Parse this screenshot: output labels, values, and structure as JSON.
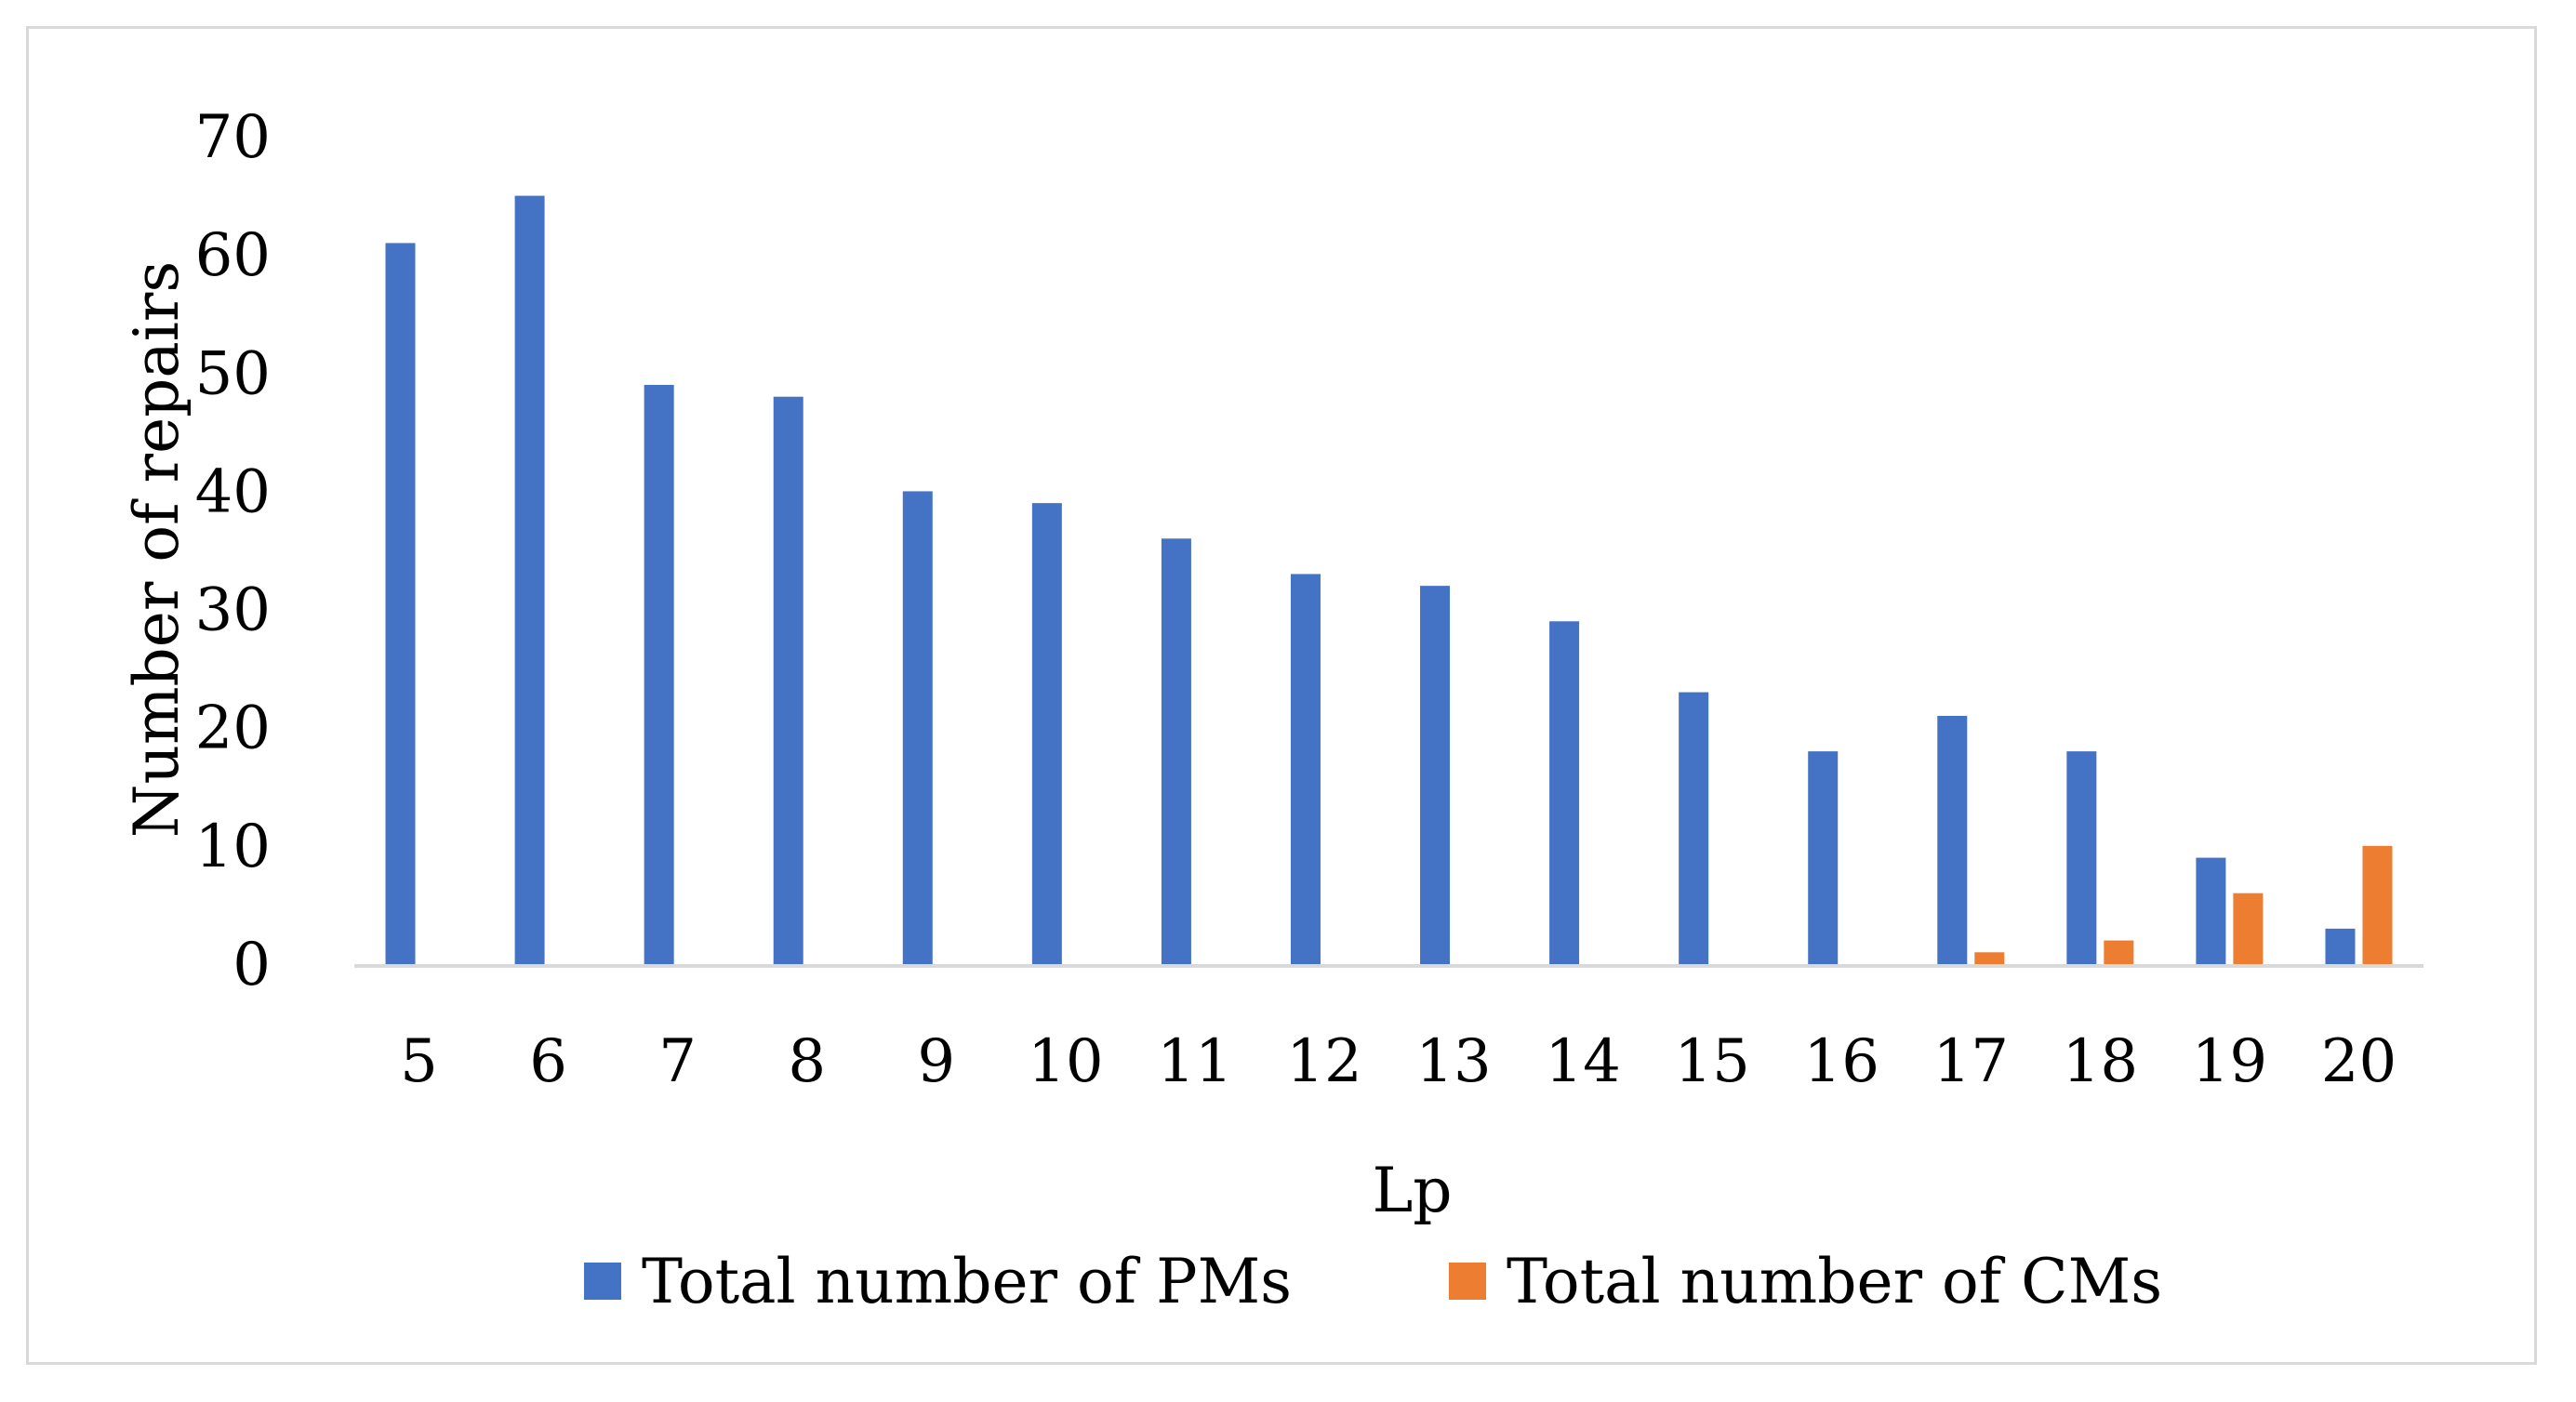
{
  "chart_data": {
    "type": "bar",
    "title": "",
    "xlabel": "Lp",
    "ylabel": "Number of repairs",
    "categories": [
      "5",
      "6",
      "7",
      "8",
      "9",
      "10",
      "11",
      "12",
      "13",
      "14",
      "15",
      "16",
      "17",
      "18",
      "19",
      "20"
    ],
    "series": [
      {
        "name": "Total number of PMs",
        "color": "#4472c4",
        "values": [
          61,
          65,
          49,
          48,
          40,
          39,
          36,
          33,
          32,
          29,
          23,
          18,
          21,
          18,
          9,
          3
        ]
      },
      {
        "name": "Total number of CMs",
        "color": "#ed7d31",
        "values": [
          0,
          0,
          0,
          0,
          0,
          0,
          0,
          0,
          0,
          0,
          0,
          0,
          1,
          2,
          6,
          10
        ]
      }
    ],
    "ylim": [
      0,
      70
    ],
    "yticks": [
      "0",
      "10",
      "20",
      "30",
      "40",
      "50",
      "60",
      "70"
    ],
    "grid": false,
    "legend_position": "bottom"
  }
}
